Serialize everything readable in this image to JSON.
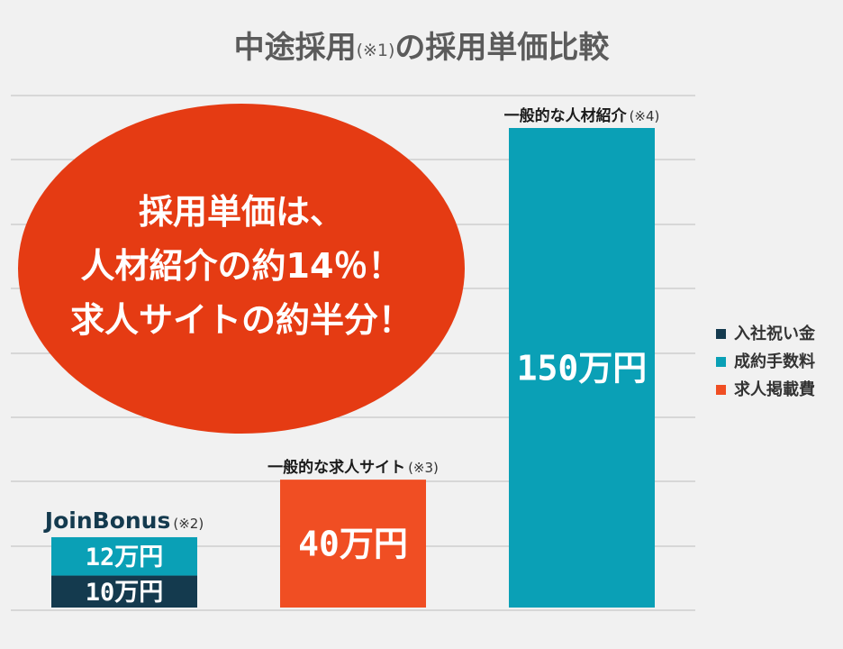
{
  "title": {
    "main": "中途採用",
    "note": "(※1)",
    "rest": "の採用単価比較"
  },
  "colors": {
    "signing_bonus": "#143a4e",
    "success_fee": "#0aa0b6",
    "posting_fee": "#f04e23",
    "callout": "#e53b13",
    "grid": "#bdbdbd",
    "background": "#f1f1f1"
  },
  "callout": {
    "lines": [
      "採用単価は、",
      "人材紹介の約14％！",
      "求人サイトの約半分！"
    ]
  },
  "chart_data": {
    "type": "bar",
    "stacked": true,
    "grid": true,
    "ylim": [
      0,
      150
    ],
    "legend_position": "right",
    "categories": [
      {
        "name": "JoinBonus",
        "note": "(※2)"
      },
      {
        "name": "一般的な求人サイト",
        "note": "(※3)"
      },
      {
        "name": "一般的な人材紹介",
        "note": "(※4)"
      }
    ],
    "series": [
      {
        "name": "入社祝い金",
        "color": "#143a4e",
        "values": [
          10,
          0,
          0
        ],
        "labels": [
          "10万円",
          "",
          ""
        ]
      },
      {
        "name": "成約手数料",
        "color": "#0aa0b6",
        "values": [
          12,
          0,
          150
        ],
        "labels": [
          "12万円",
          "",
          "150万円"
        ]
      },
      {
        "name": "求人掲載費",
        "color": "#f04e23",
        "values": [
          0,
          40,
          0
        ],
        "labels": [
          "",
          "40万円",
          ""
        ]
      }
    ]
  }
}
